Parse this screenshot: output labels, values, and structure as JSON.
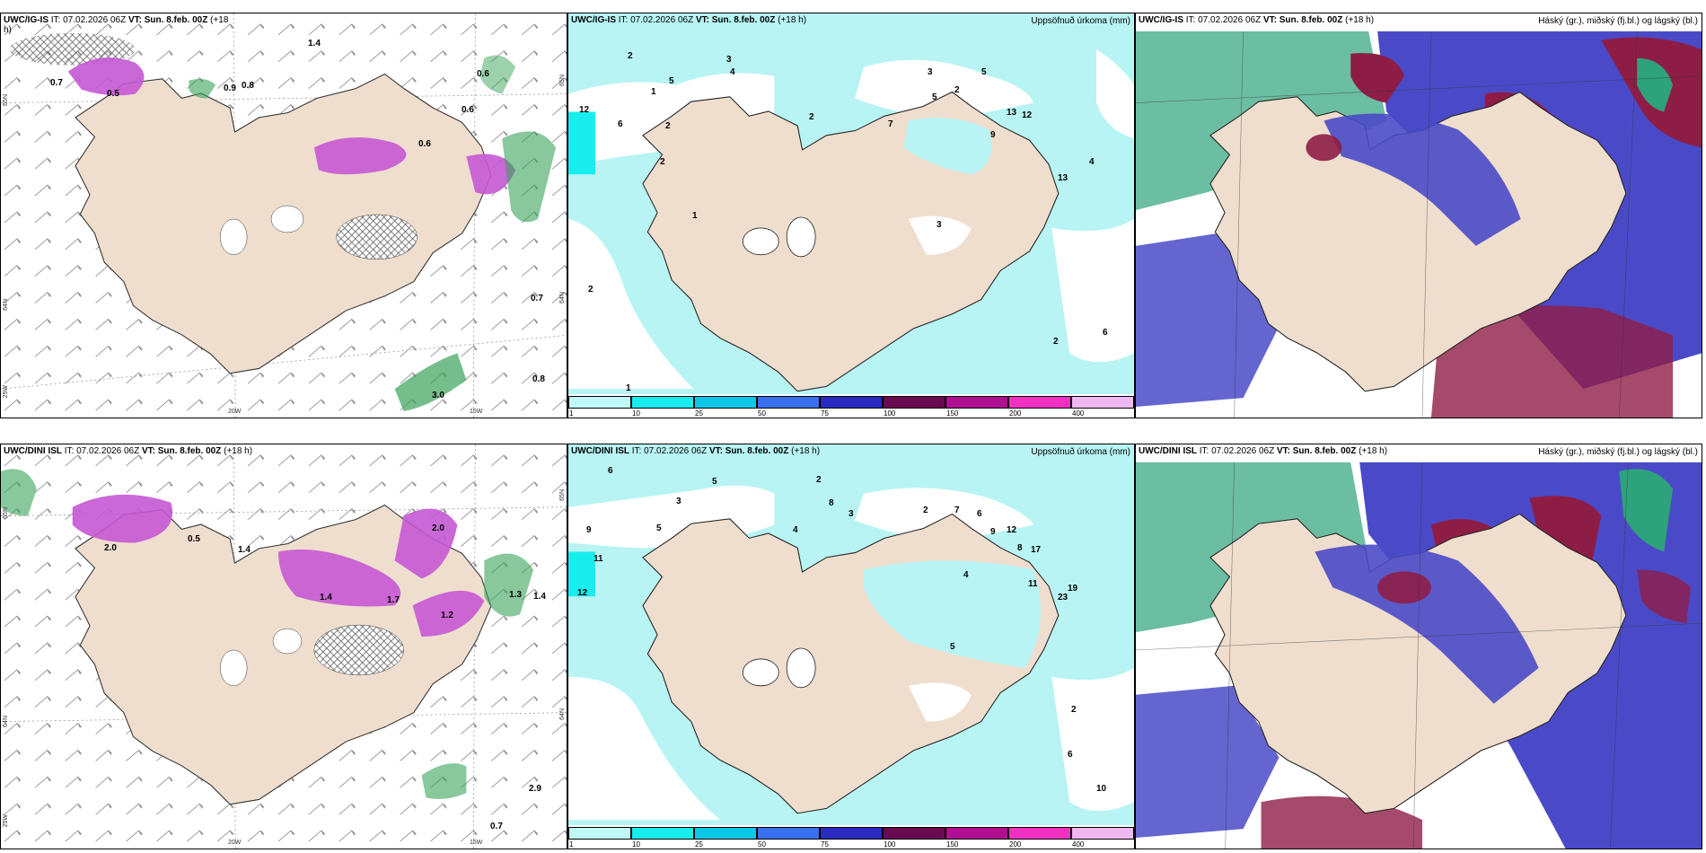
{
  "colors": {
    "land": "#efdece",
    "sea": "#ffffff",
    "snow_magenta": "#c558d4",
    "rain_green": "#3aa35a",
    "precip_cyan": "#b8f4f4",
    "high_cloud": "#2ea27a",
    "mid_cloud": "#4a4ac8",
    "low_cloud": "#8e1d46"
  },
  "panels": {
    "top_left": {
      "header": {
        "model": "UWC/IG-IS",
        "it": "IT: 07.02.2026 06Z",
        "vt_label": "VT:",
        "vt": "Sun. 8.feb. 00Z",
        "lead": "(+18",
        "lead2": "h)"
      },
      "coords": {
        "lon1": "20W",
        "lon2": "15W",
        "lat_left1": "65N",
        "lat_left2": "64N",
        "lon_left": "25W",
        "lat_right1": "65N",
        "lat_right2": "64N"
      },
      "labels": [
        "0.7",
        "0.5",
        "0.6",
        "0.9",
        "0.8",
        "0.6",
        "0.6",
        "0.7",
        "0.8",
        "1.4",
        "3.0"
      ]
    },
    "top_mid": {
      "header": {
        "model": "UWC/IG-IS",
        "it": "IT: 07.02.2026 06Z",
        "vt_label": "VT:",
        "vt": "Sun. 8.feb. 00Z",
        "lead": "(+18 h)",
        "right": "Uppsöfnuð úrkoma (mm)"
      },
      "numbers": [
        "12",
        "2",
        "6",
        "2",
        "5",
        "1",
        "3",
        "2",
        "1",
        "4",
        "2",
        "9",
        "5",
        "7",
        "3",
        "13",
        "12",
        "13",
        "4",
        "6",
        "2",
        "5",
        "2",
        "3",
        "1",
        "2"
      ],
      "colorbar": {
        "ticks": [
          "1",
          "10",
          "25",
          "50",
          "75",
          "100",
          "150",
          "200",
          "400"
        ],
        "colors": [
          "#c0f8f8",
          "#19ecec",
          "#0cc8e8",
          "#3a6ff0",
          "#2a2ac0",
          "#6a0a50",
          "#b01090",
          "#f030c0",
          "#f0b8f0"
        ]
      }
    },
    "top_right": {
      "header": {
        "model": "UWC/IG-IS",
        "it": "IT: 07.02.2026 06Z",
        "vt_label": "VT:",
        "vt": "Sun. 8.feb. 00Z",
        "lead": "(+18 h)",
        "right": "Háský (gr.), miðský (fj.bl.) og lágský (bl.)"
      }
    },
    "bottom_left": {
      "header": {
        "model": "UWC/DINI ISL",
        "it": "IT: 07.02.2026 06Z",
        "vt_label": "VT:",
        "vt": "Sun. 8.feb. 00Z",
        "lead": "(+18 h)"
      },
      "coords": {
        "lon1": "20W",
        "lon2": "15W",
        "lat_left1": "65N",
        "lat_left2": "64N",
        "lon_left": "25W",
        "lat_right1": "65N",
        "lat_right2": "64N"
      },
      "labels": [
        "0.5",
        "1.4",
        "1.4",
        "2.0",
        "1.7",
        "2.0",
        "1.2",
        "1.3",
        "1.4",
        "2.9",
        "0.7"
      ]
    },
    "bottom_mid": {
      "header": {
        "model": "UWC/DINI ISL",
        "it": "IT: 07.02.2026 06Z",
        "vt_label": "VT:",
        "vt": "Sun. 8.feb. 00Z",
        "lead": "(+18 h)",
        "right": "Uppsöfnuð úrkoma (mm)"
      },
      "numbers": [
        "6",
        "3",
        "5",
        "2",
        "9",
        "11",
        "12",
        "5",
        "4",
        "8",
        "3",
        "2",
        "9",
        "6",
        "7",
        "8",
        "12",
        "17",
        "11",
        "23",
        "19",
        "4",
        "5",
        "2",
        "6",
        "10"
      ],
      "colorbar": {
        "ticks": [
          "1",
          "10",
          "25",
          "50",
          "75",
          "100",
          "150",
          "200",
          "400"
        ],
        "colors": [
          "#c0f8f8",
          "#19ecec",
          "#0cc8e8",
          "#3a6ff0",
          "#2a2ac0",
          "#6a0a50",
          "#b01090",
          "#f030c0",
          "#f0b8f0"
        ]
      }
    },
    "bottom_right": {
      "header": {
        "model": "UWC/DINI ISL",
        "it": "IT: 07.02.2026 06Z",
        "vt_label": "VT:",
        "vt": "Sun. 8.feb. 00Z",
        "lead": "(+18 h)",
        "right": "Háský (gr.), miðský (fj.bl.) og lágský (bl.)"
      }
    }
  }
}
